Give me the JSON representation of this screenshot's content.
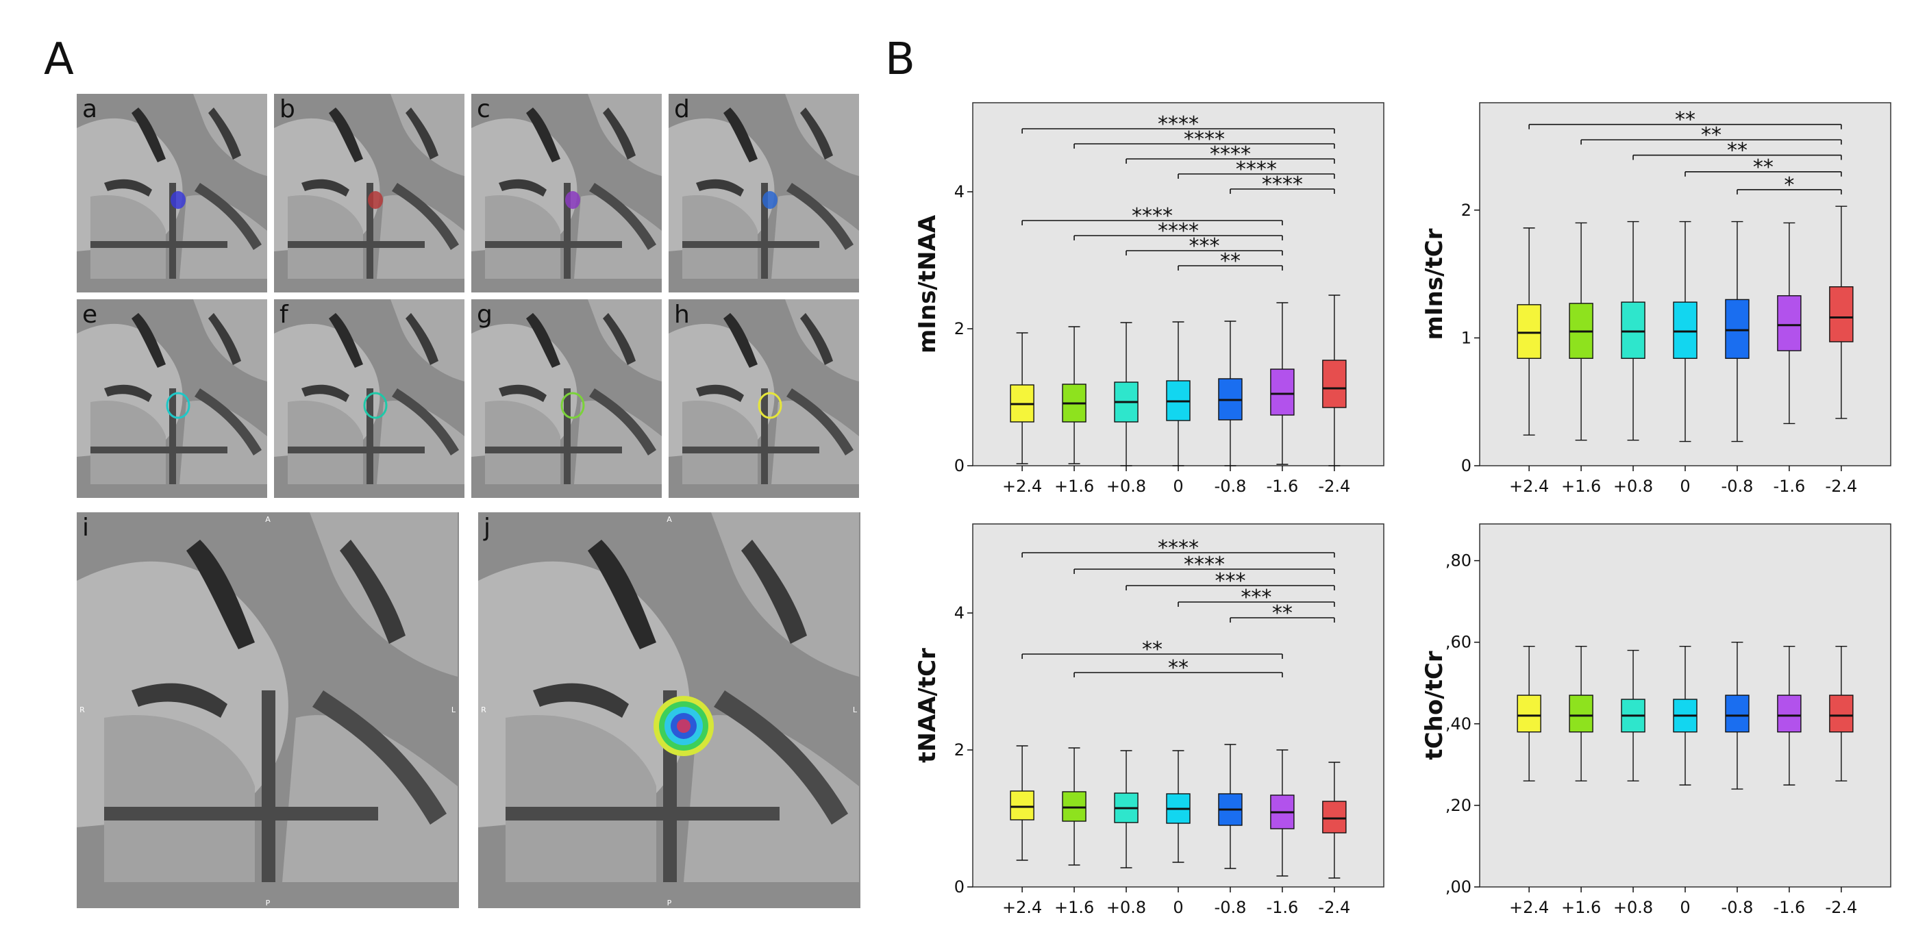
{
  "figure": {
    "panel_a_label": "A",
    "panel_b_label": "B",
    "small_tiles": [
      {
        "id": "a",
        "overlay": "filled-dot",
        "color": "#3a3ad6"
      },
      {
        "id": "b",
        "overlay": "filled-dot",
        "color": "#b43a3a"
      },
      {
        "id": "c",
        "overlay": "filled-dot",
        "color": "#8a3ac0"
      },
      {
        "id": "d",
        "overlay": "filled-dot",
        "color": "#2a66d0"
      },
      {
        "id": "e",
        "overlay": "ring",
        "color": "#1ec8c8"
      },
      {
        "id": "f",
        "overlay": "ring",
        "color": "#1ec8a8"
      },
      {
        "id": "g",
        "overlay": "ring",
        "color": "#7bd23a"
      },
      {
        "id": "h",
        "overlay": "ring",
        "color": "#e6e63a"
      }
    ],
    "large_tiles": [
      {
        "id": "i",
        "overlay": "none"
      },
      {
        "id": "j",
        "overlay": "heatmap"
      }
    ],
    "large_tile_markers": {
      "top": "A",
      "left": "R",
      "right": "L",
      "bottom": "P"
    }
  },
  "chart_data": [
    {
      "type": "box",
      "ylabel": "mIns/tNAA",
      "categories": [
        "+2.4",
        "+1.6",
        "+0.8",
        "0",
        "-0.8",
        "-1.6",
        "-2.4"
      ],
      "colors": [
        "#f5f53a",
        "#8ee21e",
        "#2ee6cc",
        "#12d6f0",
        "#1a6ef0",
        "#b252ec",
        "#e64e4e"
      ],
      "ylim": [
        0,
        5.3
      ],
      "yticks": [
        {
          "v": 0,
          "label": "0"
        },
        {
          "v": 2,
          "label": "2"
        },
        {
          "v": 4,
          "label": "4"
        }
      ],
      "boxes": [
        {
          "min": 0.03,
          "q1": 0.64,
          "median": 0.9,
          "q3": 1.18,
          "max": 1.94
        },
        {
          "min": 0.03,
          "q1": 0.64,
          "median": 0.91,
          "q3": 1.19,
          "max": 2.03
        },
        {
          "min": 0.0,
          "q1": 0.64,
          "median": 0.93,
          "q3": 1.22,
          "max": 2.09
        },
        {
          "min": 0.0,
          "q1": 0.66,
          "median": 0.94,
          "q3": 1.24,
          "max": 2.1
        },
        {
          "min": 0.0,
          "q1": 0.67,
          "median": 0.96,
          "q3": 1.27,
          "max": 2.11
        },
        {
          "min": 0.02,
          "q1": 0.74,
          "median": 1.05,
          "q3": 1.41,
          "max": 2.38
        },
        {
          "min": 0.0,
          "q1": 0.85,
          "median": 1.13,
          "q3": 1.54,
          "max": 2.49
        }
      ],
      "significance": [
        {
          "from": 0,
          "to": 6,
          "label": "****",
          "level": 4.92
        },
        {
          "from": 1,
          "to": 6,
          "label": "****",
          "level": 4.7
        },
        {
          "from": 2,
          "to": 6,
          "label": "****",
          "level": 4.48
        },
        {
          "from": 3,
          "to": 6,
          "label": "****",
          "level": 4.26
        },
        {
          "from": 4,
          "to": 6,
          "label": "****",
          "level": 4.04
        },
        {
          "from": 0,
          "to": 5,
          "label": "****",
          "level": 3.58
        },
        {
          "from": 1,
          "to": 5,
          "label": "****",
          "level": 3.36
        },
        {
          "from": 2,
          "to": 5,
          "label": "***",
          "level": 3.14
        },
        {
          "from": 3,
          "to": 5,
          "label": "**",
          "level": 2.92
        }
      ]
    },
    {
      "type": "box",
      "ylabel": "mIns/tCr",
      "categories": [
        "+2.4",
        "+1.6",
        "+0.8",
        "0",
        "-0.8",
        "-1.6",
        "-2.4"
      ],
      "colors": [
        "#f5f53a",
        "#8ee21e",
        "#2ee6cc",
        "#12d6f0",
        "#1a6ef0",
        "#b252ec",
        "#e64e4e"
      ],
      "ylim": [
        0,
        2.84
      ],
      "yticks": [
        {
          "v": 0,
          "label": "0"
        },
        {
          "v": 1,
          "label": "1"
        },
        {
          "v": 2,
          "label": "2"
        }
      ],
      "boxes": [
        {
          "min": 0.24,
          "q1": 0.84,
          "median": 1.04,
          "q3": 1.26,
          "max": 1.86
        },
        {
          "min": 0.2,
          "q1": 0.84,
          "median": 1.05,
          "q3": 1.27,
          "max": 1.9
        },
        {
          "min": 0.2,
          "q1": 0.84,
          "median": 1.05,
          "q3": 1.28,
          "max": 1.91
        },
        {
          "min": 0.19,
          "q1": 0.84,
          "median": 1.05,
          "q3": 1.28,
          "max": 1.91
        },
        {
          "min": 0.19,
          "q1": 0.84,
          "median": 1.06,
          "q3": 1.3,
          "max": 1.91
        },
        {
          "min": 0.33,
          "q1": 0.9,
          "median": 1.1,
          "q3": 1.33,
          "max": 1.9
        },
        {
          "min": 0.37,
          "q1": 0.97,
          "median": 1.16,
          "q3": 1.4,
          "max": 2.03
        }
      ],
      "significance": [
        {
          "from": 0,
          "to": 6,
          "label": "**",
          "level": 2.67
        },
        {
          "from": 1,
          "to": 6,
          "label": "**",
          "level": 2.55
        },
        {
          "from": 2,
          "to": 6,
          "label": "**",
          "level": 2.43
        },
        {
          "from": 3,
          "to": 6,
          "label": "**",
          "level": 2.3
        },
        {
          "from": 4,
          "to": 6,
          "label": "*",
          "level": 2.16
        }
      ]
    },
    {
      "type": "box",
      "ylabel": "tNAA/tCr",
      "categories": [
        "+2.4",
        "+1.6",
        "+0.8",
        "0",
        "-0.8",
        "-1.6",
        "-2.4"
      ],
      "colors": [
        "#f5f53a",
        "#8ee21e",
        "#2ee6cc",
        "#12d6f0",
        "#1a6ef0",
        "#b252ec",
        "#e64e4e"
      ],
      "ylim": [
        0,
        5.3
      ],
      "yticks": [
        {
          "v": 0,
          "label": "0"
        },
        {
          "v": 2,
          "label": "2"
        },
        {
          "v": 4,
          "label": "4"
        }
      ],
      "boxes": [
        {
          "min": 0.39,
          "q1": 0.98,
          "median": 1.17,
          "q3": 1.4,
          "max": 2.06
        },
        {
          "min": 0.32,
          "q1": 0.96,
          "median": 1.16,
          "q3": 1.39,
          "max": 2.03
        },
        {
          "min": 0.28,
          "q1": 0.94,
          "median": 1.15,
          "q3": 1.37,
          "max": 1.99
        },
        {
          "min": 0.36,
          "q1": 0.93,
          "median": 1.14,
          "q3": 1.36,
          "max": 1.99
        },
        {
          "min": 0.27,
          "q1": 0.9,
          "median": 1.13,
          "q3": 1.36,
          "max": 2.08
        },
        {
          "min": 0.16,
          "q1": 0.85,
          "median": 1.09,
          "q3": 1.34,
          "max": 2.0
        },
        {
          "min": 0.13,
          "q1": 0.79,
          "median": 1.0,
          "q3": 1.25,
          "max": 1.82
        }
      ],
      "significance": [
        {
          "from": 0,
          "to": 6,
          "label": "****",
          "level": 4.88
        },
        {
          "from": 1,
          "to": 6,
          "label": "****",
          "level": 4.64
        },
        {
          "from": 2,
          "to": 6,
          "label": "***",
          "level": 4.4
        },
        {
          "from": 3,
          "to": 6,
          "label": "***",
          "level": 4.16
        },
        {
          "from": 4,
          "to": 6,
          "label": "**",
          "level": 3.93
        },
        {
          "from": 0,
          "to": 5,
          "label": "**",
          "level": 3.4
        },
        {
          "from": 1,
          "to": 5,
          "label": "**",
          "level": 3.13
        }
      ]
    },
    {
      "type": "box",
      "ylabel": "tCho/tCr",
      "categories": [
        "+2.4",
        "+1.6",
        "+0.8",
        "0",
        "-0.8",
        "-1.6",
        "-2.4"
      ],
      "colors": [
        "#f5f53a",
        "#8ee21e",
        "#2ee6cc",
        "#12d6f0",
        "#1a6ef0",
        "#b252ec",
        "#e64e4e"
      ],
      "ylim": [
        0,
        0.89
      ],
      "yticks": [
        {
          "v": 0,
          "label": ",00"
        },
        {
          "v": 0.2,
          "label": ",20"
        },
        {
          "v": 0.4,
          "label": ",40"
        },
        {
          "v": 0.6,
          "label": ",60"
        },
        {
          "v": 0.8,
          "label": ",80"
        }
      ],
      "boxes": [
        {
          "min": 0.26,
          "q1": 0.38,
          "median": 0.42,
          "q3": 0.47,
          "max": 0.59
        },
        {
          "min": 0.26,
          "q1": 0.38,
          "median": 0.42,
          "q3": 0.47,
          "max": 0.59
        },
        {
          "min": 0.26,
          "q1": 0.38,
          "median": 0.42,
          "q3": 0.46,
          "max": 0.58
        },
        {
          "min": 0.25,
          "q1": 0.38,
          "median": 0.42,
          "q3": 0.46,
          "max": 0.59
        },
        {
          "min": 0.24,
          "q1": 0.38,
          "median": 0.42,
          "q3": 0.47,
          "max": 0.6
        },
        {
          "min": 0.25,
          "q1": 0.38,
          "median": 0.42,
          "q3": 0.47,
          "max": 0.59
        },
        {
          "min": 0.26,
          "q1": 0.38,
          "median": 0.42,
          "q3": 0.47,
          "max": 0.59
        }
      ],
      "significance": []
    }
  ]
}
